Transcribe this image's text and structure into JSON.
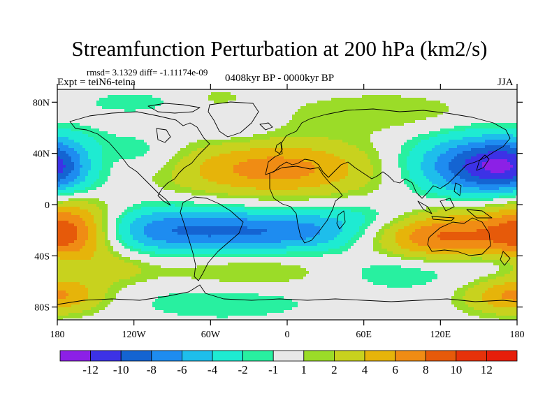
{
  "title": "Streamfunction Perturbation at 200 hPa (km2/s)",
  "stats": {
    "rmsd_text": "rmsd= 3.1329 diff= -1.11174e-09"
  },
  "experiment": "Expt = teiN6-teina",
  "period": "0408kyr BP - 0000kyr BP",
  "season": "JJA",
  "map": {
    "lat_range": [
      -90,
      90
    ],
    "lon_range": [
      -180,
      180
    ],
    "lat_ticks": [
      {
        "value": 80,
        "label": "80N"
      },
      {
        "value": 40,
        "label": "40N"
      },
      {
        "value": 0,
        "label": "0"
      },
      {
        "value": -40,
        "label": "40S"
      },
      {
        "value": -80,
        "label": "80S"
      }
    ],
    "lon_ticks": [
      {
        "value": -180,
        "label": "180"
      },
      {
        "value": -120,
        "label": "120W"
      },
      {
        "value": -60,
        "label": "60W"
      },
      {
        "value": 0,
        "label": "0"
      },
      {
        "value": 60,
        "label": "60E"
      },
      {
        "value": 120,
        "label": "120E"
      },
      {
        "value": 180,
        "label": "180"
      }
    ]
  },
  "field_blobs": [
    {
      "name": "eurasia-high",
      "lon": -10,
      "lat": 28,
      "rx": 60,
      "ry": 16,
      "amp": 7
    },
    {
      "name": "north-atlantic-low",
      "lon": -40,
      "lat": 62,
      "rx": 20,
      "ry": 11,
      "amp": -1.5
    },
    {
      "name": "arctic-low",
      "lon": -120,
      "lat": 80,
      "rx": 35,
      "ry": 7,
      "amp": -1.5
    },
    {
      "name": "greenland-high",
      "lon": -55,
      "lat": 82,
      "rx": 22,
      "ry": 8,
      "amp": 1.5
    },
    {
      "name": "siberia-high",
      "lon": 75,
      "lat": 72,
      "rx": 55,
      "ry": 11,
      "amp": 2
    },
    {
      "name": "pacific-west-low",
      "lon": 150,
      "lat": 30,
      "rx": 40,
      "ry": 17,
      "amp": -9.5
    },
    {
      "name": "dateline-low",
      "lon": -180,
      "lat": 30,
      "rx": 25,
      "ry": 15,
      "amp": -5
    },
    {
      "name": "pacific-east-high",
      "lon": -150,
      "lat": 32,
      "rx": 18,
      "ry": 11,
      "amp": 2.5
    },
    {
      "name": "north-america-low",
      "lon": -110,
      "lat": 40,
      "rx": 25,
      "ry": 12,
      "amp": -2
    },
    {
      "name": "equatorial-low",
      "lon": -80,
      "lat": -20,
      "rx": 60,
      "ry": 13,
      "amp": -8
    },
    {
      "name": "south-atlantic-low",
      "lon": 20,
      "lat": -22,
      "rx": 45,
      "ry": 11,
      "amp": -5
    },
    {
      "name": "indian-ocean-low",
      "lon": 70,
      "lat": -8,
      "rx": 38,
      "ry": 9,
      "amp": -2.5
    },
    {
      "name": "australia-high",
      "lon": 120,
      "lat": -24,
      "rx": 45,
      "ry": 15,
      "amp": 9
    },
    {
      "name": "south-pacific-high",
      "lon": -168,
      "lat": -20,
      "rx": 25,
      "ry": 18,
      "amp": 9
    },
    {
      "name": "southern-ocean-high",
      "lon": -30,
      "lat": -52,
      "rx": 55,
      "ry": 11,
      "amp": 2.5
    },
    {
      "name": "antarctic-low",
      "lon": -50,
      "lat": -75,
      "rx": 55,
      "ry": 11,
      "amp": -2
    },
    {
      "name": "west-antarctic-high",
      "lon": -170,
      "lat": -70,
      "rx": 25,
      "ry": 10,
      "amp": 3
    },
    {
      "name": "southeast-pacific-high",
      "lon": 170,
      "lat": -72,
      "rx": 25,
      "ry": 10,
      "amp": 4
    },
    {
      "name": "subantarctic-high",
      "lon": -130,
      "lat": -50,
      "rx": 20,
      "ry": 8,
      "amp": 2
    },
    {
      "name": "south-indian-low",
      "lon": 90,
      "lat": -50,
      "rx": 40,
      "ry": 11,
      "amp": -3
    },
    {
      "name": "southwest-pacific-low",
      "lon": 160,
      "lat": -45,
      "rx": 22,
      "ry": 8,
      "amp": -2
    }
  ],
  "colorbar": {
    "levels": [
      -12,
      -10,
      -8,
      -6,
      -4,
      -2,
      -1,
      1,
      2,
      4,
      6,
      8,
      10,
      12
    ],
    "labels": [
      "-12",
      "-10",
      "-8",
      "-6",
      "-4",
      "-2",
      "-1",
      "1",
      "2",
      "4",
      "6",
      "8",
      "10",
      "12"
    ],
    "colors": [
      "#8c20e6",
      "#3c32e6",
      "#1464d2",
      "#1e8cf0",
      "#1ebeeb",
      "#1eebd2",
      "#28f0a0",
      "#e8e8e8",
      "#9bdc28",
      "#c8d21e",
      "#e6b40a",
      "#f08c14",
      "#e65a0a",
      "#e6320a",
      "#e61e0a"
    ]
  }
}
